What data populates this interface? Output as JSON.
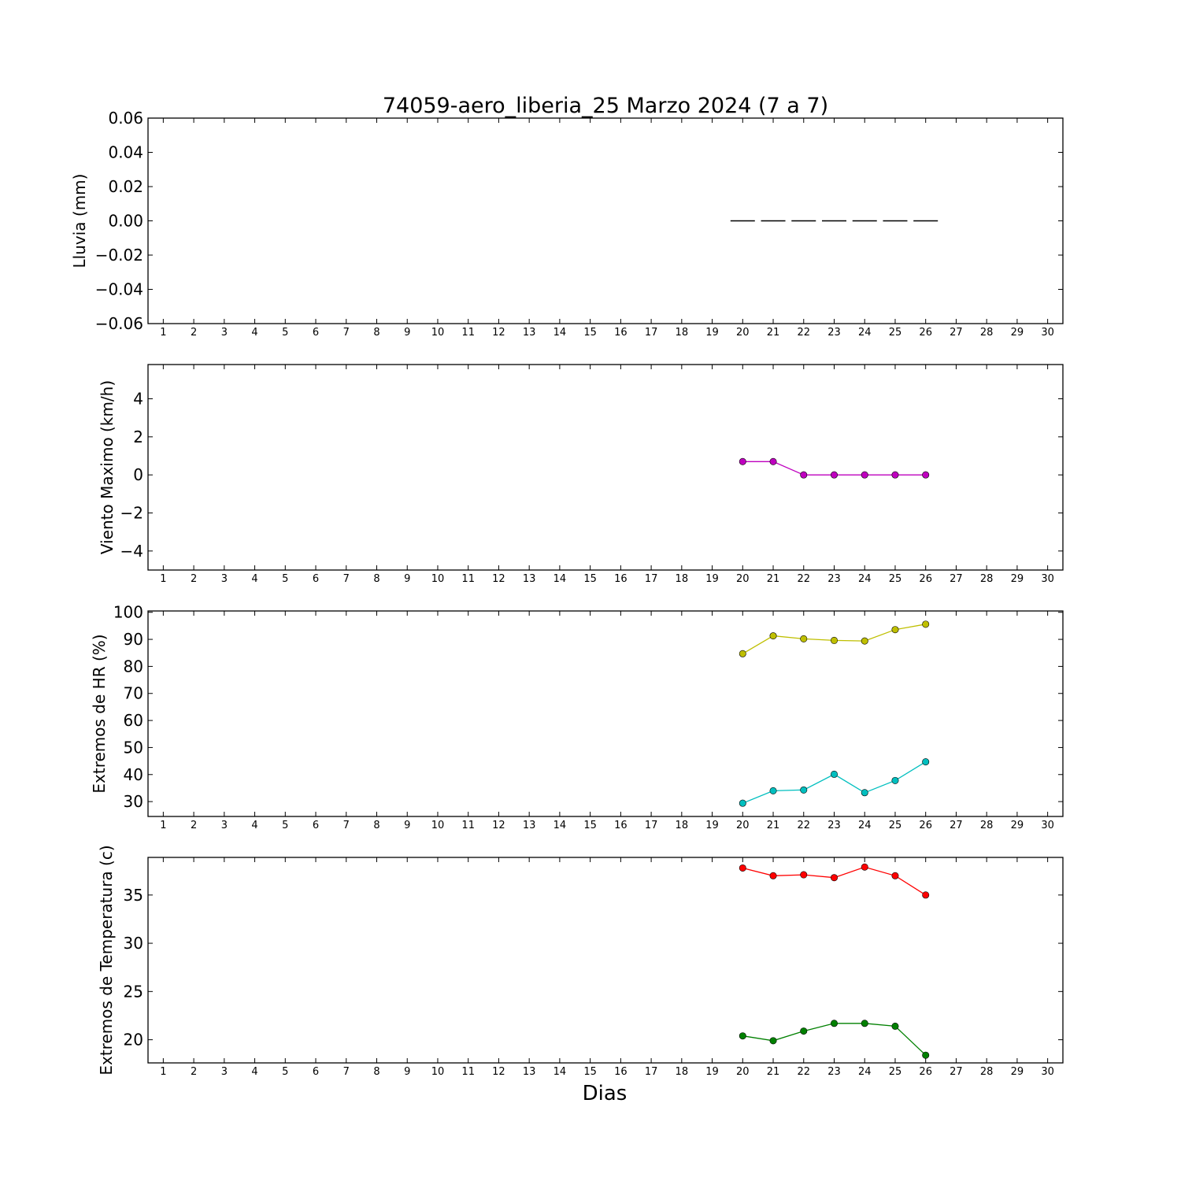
{
  "title": "74059-aero_liberia_25 Marzo 2024  (7 a 7)",
  "xlabel": "Dias",
  "chart_data": [
    {
      "type": "bar",
      "ylabel": "Lluvia (mm)",
      "ylim": [
        -0.06,
        0.06
      ],
      "yticks": [
        "0.06",
        "0.04",
        "0.02",
        "0.00",
        "−0.02",
        "−0.04",
        "−0.06"
      ],
      "ytick_values": [
        0.06,
        0.04,
        0.02,
        0.0,
        -0.02,
        -0.04,
        -0.06
      ],
      "xlim": [
        0.5,
        30.5
      ],
      "xticks": [
        1,
        2,
        3,
        4,
        5,
        6,
        7,
        8,
        9,
        10,
        11,
        12,
        13,
        14,
        15,
        16,
        17,
        18,
        19,
        20,
        21,
        22,
        23,
        24,
        25,
        26,
        27,
        28,
        29,
        30
      ],
      "series": [
        {
          "color": "#000000",
          "x": [
            20,
            21,
            22,
            23,
            24,
            25,
            26
          ],
          "values": [
            0,
            0,
            0,
            0,
            0,
            0,
            0
          ]
        }
      ]
    },
    {
      "type": "line",
      "ylabel": "Viento Maximo (km/h)",
      "ylim": [
        -5,
        5.8
      ],
      "yticks": [
        "4",
        "2",
        "0",
        "−2",
        "−4"
      ],
      "ytick_values": [
        4,
        2,
        0,
        -2,
        -4
      ],
      "xlim": [
        0.5,
        30.5
      ],
      "xticks": [
        1,
        2,
        3,
        4,
        5,
        6,
        7,
        8,
        9,
        10,
        11,
        12,
        13,
        14,
        15,
        16,
        17,
        18,
        19,
        20,
        21,
        22,
        23,
        24,
        25,
        26,
        27,
        28,
        29,
        30
      ],
      "series": [
        {
          "color": "#bf00bf",
          "x": [
            20,
            21,
            22,
            23,
            24,
            25,
            26
          ],
          "values": [
            0.7,
            0.7,
            0,
            0,
            0,
            0,
            0
          ]
        }
      ]
    },
    {
      "type": "line",
      "ylabel": "Extremos de HR (%)",
      "ylim": [
        24.5,
        100.5
      ],
      "yticks": [
        "100",
        "90",
        "80",
        "70",
        "60",
        "50",
        "40",
        "30"
      ],
      "ytick_values": [
        100,
        90,
        80,
        70,
        60,
        50,
        40,
        30
      ],
      "xlim": [
        0.5,
        30.5
      ],
      "xticks": [
        1,
        2,
        3,
        4,
        5,
        6,
        7,
        8,
        9,
        10,
        11,
        12,
        13,
        14,
        15,
        16,
        17,
        18,
        19,
        20,
        21,
        22,
        23,
        24,
        25,
        26,
        27,
        28,
        29,
        30
      ],
      "series": [
        {
          "color": "#bfbf00",
          "x": [
            20,
            21,
            22,
            23,
            24,
            25,
            26
          ],
          "values": [
            84.7,
            91.3,
            90.2,
            89.6,
            89.4,
            93.6,
            95.6
          ]
        },
        {
          "color": "#00bfbf",
          "x": [
            20,
            21,
            22,
            23,
            24,
            25,
            26
          ],
          "values": [
            29.4,
            34.0,
            34.3,
            40.1,
            33.3,
            37.8,
            44.7
          ]
        }
      ]
    },
    {
      "type": "line",
      "ylabel": "Extremos de Temperatura (c)",
      "ylim": [
        17.6,
        38.9
      ],
      "yticks": [
        "35",
        "30",
        "25",
        "20"
      ],
      "ytick_values": [
        35,
        30,
        25,
        20
      ],
      "xlim": [
        0.5,
        30.5
      ],
      "xticks": [
        1,
        2,
        3,
        4,
        5,
        6,
        7,
        8,
        9,
        10,
        11,
        12,
        13,
        14,
        15,
        16,
        17,
        18,
        19,
        20,
        21,
        22,
        23,
        24,
        25,
        26,
        27,
        28,
        29,
        30
      ],
      "series": [
        {
          "color": "#ff0000",
          "x": [
            20,
            21,
            22,
            23,
            24,
            25,
            26
          ],
          "values": [
            37.8,
            37.0,
            37.1,
            36.8,
            37.9,
            37.0,
            35.0
          ]
        },
        {
          "color": "#008000",
          "x": [
            20,
            21,
            22,
            23,
            24,
            25,
            26
          ],
          "values": [
            20.4,
            19.9,
            20.9,
            21.7,
            21.7,
            21.4,
            18.4
          ]
        }
      ]
    }
  ]
}
